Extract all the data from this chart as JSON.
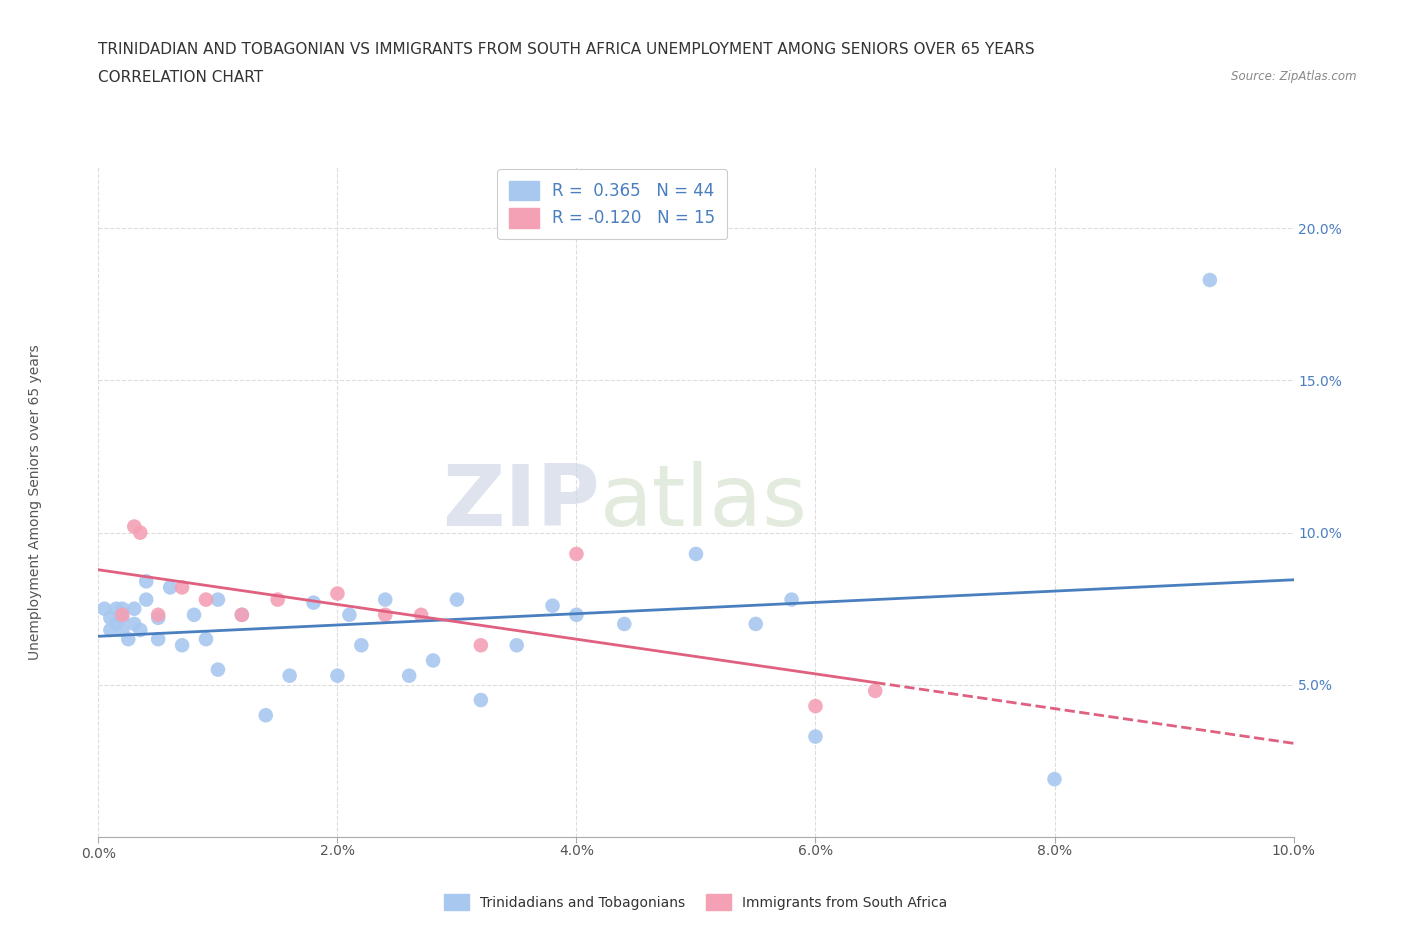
{
  "title_line1": "TRINIDADIAN AND TOBAGONIAN VS IMMIGRANTS FROM SOUTH AFRICA UNEMPLOYMENT AMONG SENIORS OVER 65 YEARS",
  "title_line2": "CORRELATION CHART",
  "source": "Source: ZipAtlas.com",
  "ylabel": "Unemployment Among Seniors over 65 years",
  "watermark_zip": "ZIP",
  "watermark_atlas": "atlas",
  "legend1_label": "Trinidadians and Tobagonians",
  "legend2_label": "Immigrants from South Africa",
  "R1": 0.365,
  "N1": 44,
  "R2": -0.12,
  "N2": 15,
  "color1": "#A8C8F0",
  "color2": "#F4A0B5",
  "line1_color": "#4A7FBF",
  "line2_color": "#E06080",
  "xlim": [
    0.0,
    0.1
  ],
  "ylim": [
    0.0,
    0.22
  ],
  "x_ticks": [
    0.0,
    0.02,
    0.04,
    0.06,
    0.08,
    0.1
  ],
  "y_ticks": [
    0.0,
    0.05,
    0.1,
    0.15,
    0.2
  ],
  "x_tick_labels": [
    "0.0%",
    "",
    "",
    "",
    "",
    ""
  ],
  "x_tick_labels_right": [
    "",
    "2.0%",
    "4.0%",
    "6.0%",
    "8.0%",
    "10.0%"
  ],
  "y_tick_labels": [
    "",
    "5.0%",
    "10.0%",
    "15.0%",
    "20.0%"
  ],
  "blue_x": [
    0.0005,
    0.001,
    0.001,
    0.0015,
    0.0015,
    0.002,
    0.002,
    0.002,
    0.0025,
    0.003,
    0.003,
    0.0035,
    0.004,
    0.004,
    0.005,
    0.005,
    0.006,
    0.007,
    0.008,
    0.009,
    0.01,
    0.01,
    0.012,
    0.014,
    0.016,
    0.018,
    0.02,
    0.021,
    0.022,
    0.024,
    0.026,
    0.028,
    0.03,
    0.032,
    0.035,
    0.038,
    0.04,
    0.044,
    0.05,
    0.055,
    0.058,
    0.06,
    0.08,
    0.093
  ],
  "blue_y": [
    0.075,
    0.072,
    0.068,
    0.075,
    0.07,
    0.072,
    0.075,
    0.068,
    0.065,
    0.075,
    0.07,
    0.068,
    0.078,
    0.084,
    0.072,
    0.065,
    0.082,
    0.063,
    0.073,
    0.065,
    0.055,
    0.078,
    0.073,
    0.04,
    0.053,
    0.077,
    0.053,
    0.073,
    0.063,
    0.078,
    0.053,
    0.058,
    0.078,
    0.045,
    0.063,
    0.076,
    0.073,
    0.07,
    0.093,
    0.07,
    0.078,
    0.033,
    0.019,
    0.183
  ],
  "pink_x": [
    0.002,
    0.003,
    0.0035,
    0.005,
    0.007,
    0.009,
    0.012,
    0.015,
    0.02,
    0.024,
    0.027,
    0.032,
    0.04,
    0.06,
    0.065
  ],
  "pink_y": [
    0.073,
    0.102,
    0.1,
    0.073,
    0.082,
    0.078,
    0.073,
    0.078,
    0.08,
    0.073,
    0.073,
    0.063,
    0.093,
    0.043,
    0.048
  ],
  "grid_color": "#DDDDDD",
  "bg_color": "#FFFFFF",
  "title_fontsize": 11,
  "axis_label_fontsize": 10,
  "tick_fontsize": 10,
  "marker_size": 110
}
